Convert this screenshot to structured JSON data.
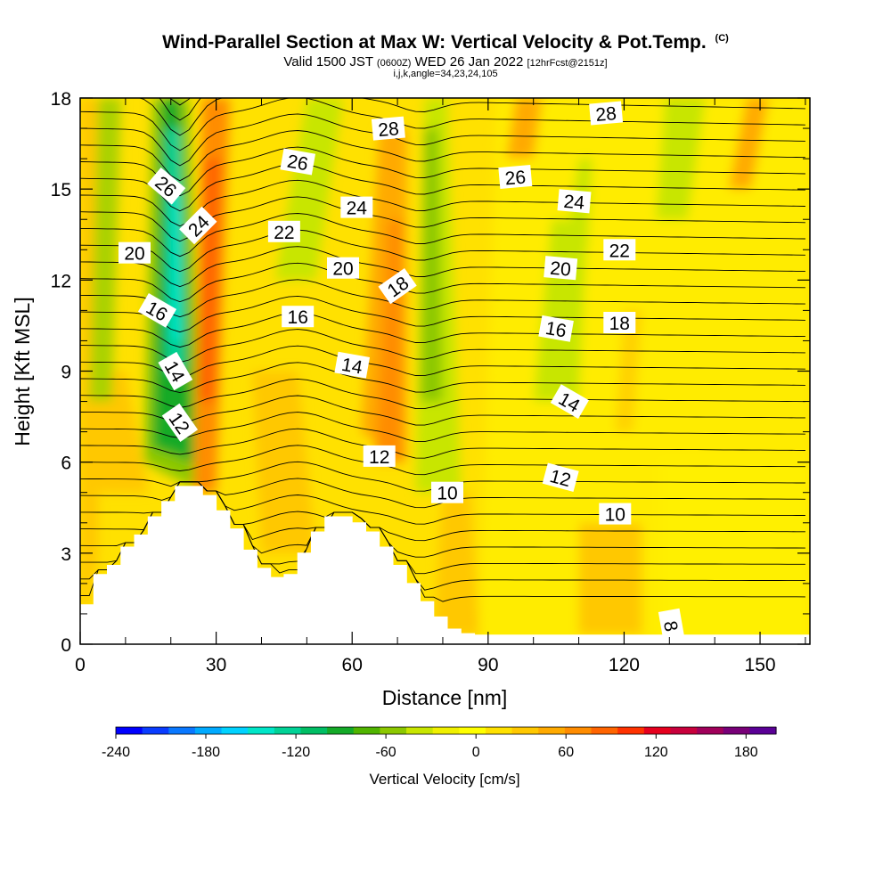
{
  "header": {
    "title": "Wind-Parallel Section at Max W: Vertical Velocity & Pot.Temp.",
    "title_units": "(C)",
    "valid_prefix": "Valid 1500 JST",
    "valid_zulu": "(0600Z)",
    "valid_date": "WED 26 Jan 2022",
    "forecast": "[12hrFcst@2151z]",
    "indices": "i,j,k,angle=34,23,24,105"
  },
  "chart_data": {
    "type": "heatmap",
    "xlabel": "Distance [nm]",
    "ylabel": "Height [Kft MSL]",
    "xlim": [
      0,
      161
    ],
    "ylim": [
      0,
      18
    ],
    "x_ticks": [
      "0",
      "30",
      "60",
      "90",
      "120",
      "150"
    ],
    "y_ticks": [
      "0",
      "3",
      "6",
      "9",
      "12",
      "15",
      "18"
    ],
    "colorbar": {
      "label": "Vertical Velocity [cm/s]",
      "range": [
        -240,
        200
      ],
      "tick_labels": [
        "-240",
        "-180",
        "-120",
        "-60",
        "0",
        "60",
        "120",
        "180"
      ],
      "colors": [
        "#0000ff",
        "#0a3cff",
        "#0a78ff",
        "#00aaff",
        "#00d2ff",
        "#00e6c8",
        "#00d296",
        "#00be64",
        "#14aa28",
        "#50b400",
        "#8cc800",
        "#c8e600",
        "#f0f000",
        "#ffff00",
        "#ffe100",
        "#ffc800",
        "#ffaa00",
        "#ff8c00",
        "#ff6400",
        "#ff3200",
        "#e6001e",
        "#c8003c",
        "#a0005a",
        "#780078",
        "#5a0096"
      ]
    },
    "contour_labels": [
      "8",
      "10",
      "10",
      "12",
      "12",
      "12",
      "14",
      "14",
      "14",
      "16",
      "16",
      "16",
      "18",
      "18",
      "20",
      "20",
      "20",
      "22",
      "22",
      "24",
      "24",
      "24",
      "26",
      "26",
      "26",
      "28",
      "28"
    ],
    "terrain": [
      [
        0,
        1.3
      ],
      [
        3,
        2.3
      ],
      [
        6,
        2.6
      ],
      [
        9,
        3.2
      ],
      [
        12,
        3.6
      ],
      [
        15,
        4.2
      ],
      [
        18,
        4.7
      ],
      [
        21,
        5.2
      ],
      [
        24,
        5.2
      ],
      [
        27,
        4.9
      ],
      [
        30,
        4.4
      ],
      [
        33,
        3.8
      ],
      [
        36,
        3.1
      ],
      [
        39,
        2.5
      ],
      [
        42,
        2.2
      ],
      [
        45,
        2.3
      ],
      [
        48,
        3.0
      ],
      [
        51,
        3.7
      ],
      [
        54,
        4.2
      ],
      [
        57,
        4.2
      ],
      [
        60,
        4.0
      ],
      [
        63,
        3.7
      ],
      [
        66,
        3.2
      ],
      [
        69,
        2.6
      ],
      [
        72,
        2.0
      ],
      [
        75,
        1.4
      ],
      [
        78,
        0.9
      ],
      [
        81,
        0.5
      ],
      [
        84,
        0.35
      ],
      [
        87,
        0.3
      ],
      [
        161,
        0.3
      ]
    ]
  }
}
